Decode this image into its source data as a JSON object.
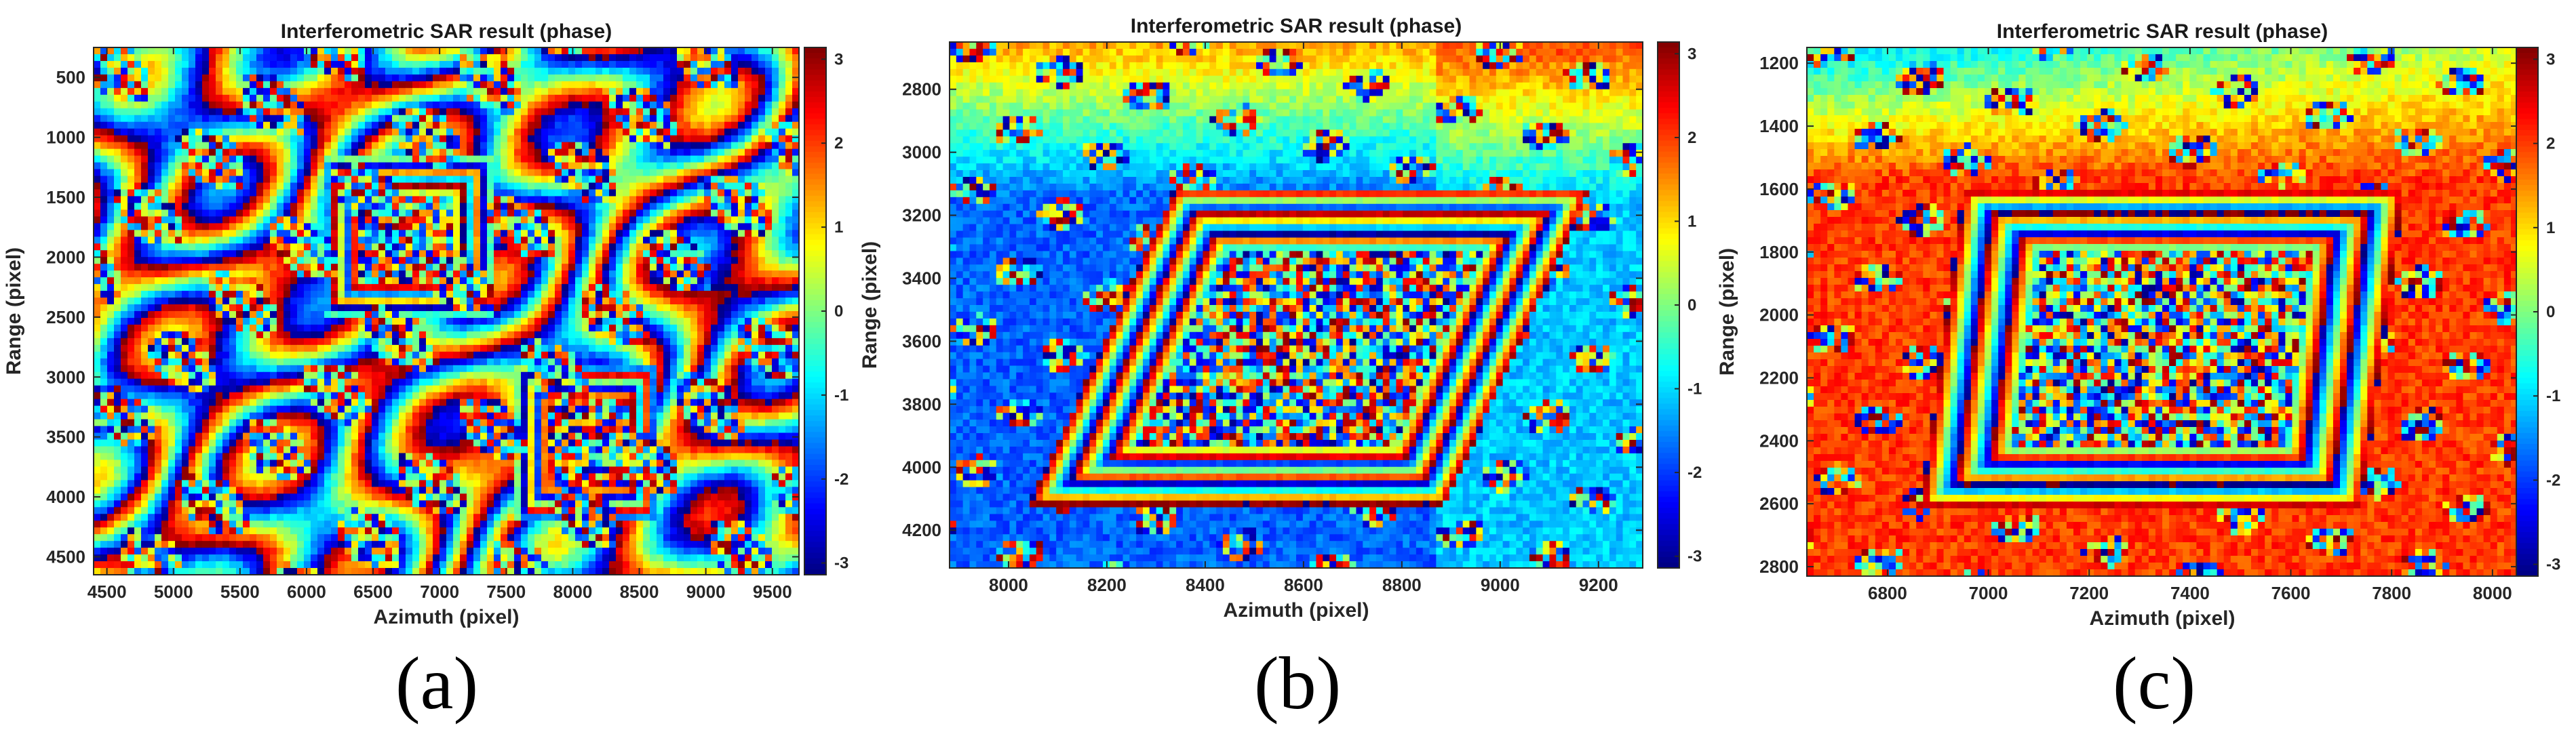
{
  "panel_labels": [
    "(a)",
    "(b)",
    "(c)"
  ],
  "chart_data": [
    {
      "type": "heatmap",
      "title": "Interferometric SAR result (phase)",
      "xlabel": "Azimuth (pixel)",
      "ylabel": "Range (pixel)",
      "xlim": [
        4400,
        9700
      ],
      "ylim": [
        250,
        4650
      ],
      "xticks": [
        4500,
        5000,
        5500,
        6000,
        6500,
        7000,
        7500,
        8000,
        8500,
        9000,
        9500
      ],
      "yticks": [
        500,
        1000,
        1500,
        2000,
        2500,
        3000,
        3500,
        4000,
        4500
      ],
      "y_reversed": true,
      "colorbar": {
        "colormap": "jet",
        "range": [
          -3.14,
          3.14
        ],
        "ticks": [
          -3,
          -2,
          -1,
          0,
          1,
          2,
          3
        ]
      },
      "colors": {
        "low": "#00008f",
        "mid": "#7fff7f",
        "high": "#800000"
      }
    },
    {
      "type": "heatmap",
      "title": "Interferometric SAR result (phase)",
      "xlabel": "Azimuth (pixel)",
      "ylabel": "Range (pixel)",
      "xlim": [
        7880,
        9290
      ],
      "ylim": [
        2650,
        4320
      ],
      "xticks": [
        8000,
        8200,
        8400,
        8600,
        8800,
        9000,
        9200
      ],
      "yticks": [
        2800,
        3000,
        3200,
        3400,
        3600,
        3800,
        4000,
        4200
      ],
      "y_reversed": true,
      "colorbar": {
        "colormap": "jet",
        "range": [
          -3.14,
          3.14
        ],
        "ticks": [
          -3,
          -2,
          -1,
          0,
          1,
          2,
          3
        ]
      },
      "colors": {
        "low": "#00008f",
        "mid": "#7fff7f",
        "high": "#800000"
      }
    },
    {
      "type": "heatmap",
      "title": "Interferometric SAR result (phase)",
      "xlabel": "Azimuth (pixel)",
      "ylabel": "Range (pixel)",
      "xlim": [
        6640,
        8050
      ],
      "ylim": [
        1150,
        2830
      ],
      "xticks": [
        6800,
        7000,
        7200,
        7400,
        7600,
        7800,
        8000
      ],
      "yticks": [
        1200,
        1400,
        1600,
        1800,
        2000,
        2200,
        2400,
        2600,
        2800
      ],
      "y_reversed": true,
      "colorbar": {
        "colormap": "jet",
        "range": [
          -3.14,
          3.14
        ],
        "ticks": [
          -3,
          -2,
          -1,
          0,
          1,
          2,
          3
        ]
      },
      "colors": {
        "low": "#00008f",
        "mid": "#7fff7f",
        "high": "#800000"
      }
    }
  ]
}
